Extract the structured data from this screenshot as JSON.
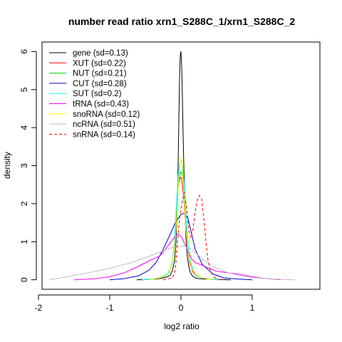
{
  "chart_data": {
    "type": "line",
    "title": "number read ratio xrn1_S288C_1/xrn1_S288C_2",
    "xlabel": "log2 ratio",
    "ylabel": "density",
    "xlim": [
      -1.95,
      1.95
    ],
    "ylim": [
      -0.25,
      6.25
    ],
    "x_ticks": [
      -2,
      -1,
      0,
      1
    ],
    "x_tick_labels": [
      "-2",
      "-1",
      "0",
      "1"
    ],
    "y_ticks": [
      0,
      1,
      2,
      3,
      4,
      5,
      6
    ],
    "y_tick_labels": [
      "0",
      "1",
      "2",
      "3",
      "4",
      "5",
      "6"
    ],
    "legend_position": "top-left",
    "legend_frame": false,
    "series": [
      {
        "name": "gene (sd=0.13)",
        "color": "#000000",
        "dash": "solid",
        "x": [
          -0.62,
          -0.45,
          -0.35,
          -0.27,
          -0.2,
          -0.15,
          -0.12,
          -0.09,
          -0.07,
          -0.05,
          -0.04,
          -0.03,
          -0.02,
          -0.01,
          0.0,
          0.01,
          0.02,
          0.03,
          0.04,
          0.05,
          0.06,
          0.07,
          0.09,
          0.11,
          0.13,
          0.16,
          0.2,
          0.25,
          0.35,
          0.5,
          0.7
        ],
        "y": [
          0.0,
          0.01,
          0.02,
          0.04,
          0.07,
          0.12,
          0.25,
          0.5,
          1.0,
          2.0,
          3.0,
          4.2,
          5.3,
          5.9,
          6.0,
          5.6,
          4.8,
          3.8,
          3.0,
          2.2,
          1.6,
          1.1,
          0.6,
          0.35,
          0.2,
          0.1,
          0.05,
          0.03,
          0.02,
          0.01,
          0.0
        ]
      },
      {
        "name": "XUT (sd=0.22)",
        "color": "#ff0000",
        "dash": "solid",
        "x": [
          -0.55,
          -0.4,
          -0.3,
          -0.22,
          -0.17,
          -0.13,
          -0.1,
          -0.08,
          -0.06,
          -0.04,
          -0.02,
          0.0,
          0.02,
          0.04,
          0.06,
          0.08,
          0.1,
          0.13,
          0.17,
          0.22,
          0.3,
          0.4,
          0.55
        ],
        "y": [
          0.0,
          0.02,
          0.05,
          0.1,
          0.2,
          0.4,
          0.8,
          1.3,
          1.9,
          2.4,
          2.65,
          2.7,
          2.5,
          2.1,
          1.6,
          1.1,
          0.7,
          0.4,
          0.2,
          0.1,
          0.05,
          0.02,
          0.0
        ]
      },
      {
        "name": "NUT (sd=0.21)",
        "color": "#00cc00",
        "dash": "solid",
        "x": [
          -0.55,
          -0.4,
          -0.3,
          -0.22,
          -0.17,
          -0.13,
          -0.1,
          -0.08,
          -0.06,
          -0.04,
          -0.02,
          0.0,
          0.02,
          0.04,
          0.06,
          0.08,
          0.1,
          0.13,
          0.17,
          0.22,
          0.3,
          0.4,
          0.55
        ],
        "y": [
          0.0,
          0.02,
          0.05,
          0.1,
          0.2,
          0.4,
          0.8,
          1.3,
          1.9,
          2.4,
          2.7,
          2.85,
          2.75,
          2.4,
          1.9,
          1.4,
          0.9,
          0.5,
          0.25,
          0.1,
          0.05,
          0.02,
          0.0
        ]
      },
      {
        "name": "CUT (sd=0.28)",
        "color": "#0000cc",
        "dash": "solid",
        "x": [
          -1.0,
          -0.8,
          -0.6,
          -0.45,
          -0.35,
          -0.25,
          -0.15,
          -0.08,
          0.0,
          0.05,
          0.1,
          0.15,
          0.2,
          0.3,
          0.45,
          0.6,
          0.8,
          1.0
        ],
        "y": [
          0.0,
          0.03,
          0.1,
          0.25,
          0.45,
          0.8,
          1.2,
          1.5,
          1.72,
          1.75,
          1.6,
          1.2,
          0.8,
          0.4,
          0.15,
          0.05,
          0.02,
          0.0
        ]
      },
      {
        "name": "SUT (sd=0.2)",
        "color": "#00ffff",
        "dash": "solid",
        "x": [
          -0.55,
          -0.4,
          -0.3,
          -0.22,
          -0.17,
          -0.13,
          -0.1,
          -0.08,
          -0.06,
          -0.04,
          -0.02,
          0.0,
          0.02,
          0.04,
          0.06,
          0.08,
          0.1,
          0.13,
          0.17,
          0.22,
          0.3,
          0.4,
          0.55
        ],
        "y": [
          0.0,
          0.02,
          0.05,
          0.1,
          0.2,
          0.4,
          0.8,
          1.4,
          2.1,
          2.7,
          3.05,
          3.15,
          3.0,
          2.6,
          2.0,
          1.4,
          0.9,
          0.5,
          0.25,
          0.1,
          0.05,
          0.02,
          0.0
        ]
      },
      {
        "name": "tRNA (sd=0.43)",
        "color": "#ff00ff",
        "dash": "solid",
        "x": [
          -1.5,
          -1.2,
          -1.0,
          -0.8,
          -0.6,
          -0.45,
          -0.3,
          -0.2,
          -0.1,
          -0.05,
          0.0,
          0.05,
          0.1,
          0.15,
          0.2,
          0.3,
          0.4,
          0.5,
          0.6,
          0.8,
          1.0,
          1.2,
          1.4
        ],
        "y": [
          0.0,
          0.03,
          0.08,
          0.18,
          0.35,
          0.5,
          0.62,
          0.85,
          1.1,
          1.2,
          1.15,
          0.95,
          0.75,
          0.55,
          0.45,
          0.38,
          0.3,
          0.22,
          0.2,
          0.15,
          0.08,
          0.03,
          0.0
        ]
      },
      {
        "name": "snoRNA (sd=0.12)",
        "color": "#ffff00",
        "dash": "solid",
        "x": [
          -0.45,
          -0.3,
          -0.2,
          -0.15,
          -0.1,
          -0.07,
          -0.05,
          -0.03,
          -0.01,
          0.0,
          0.01,
          0.03,
          0.05,
          0.07,
          0.1,
          0.15,
          0.2,
          0.3,
          0.45
        ],
        "y": [
          0.0,
          0.05,
          0.15,
          0.3,
          0.7,
          1.3,
          2.0,
          2.7,
          3.1,
          3.2,
          3.1,
          2.6,
          1.9,
          1.3,
          0.7,
          0.3,
          0.15,
          0.05,
          0.0
        ]
      },
      {
        "name": "ncRNA (sd=0.51)",
        "color": "#bebebe",
        "dash": "solid",
        "x": [
          -1.85,
          -1.6,
          -1.3,
          -1.0,
          -0.7,
          -0.4,
          -0.2,
          -0.05,
          0.05,
          0.15,
          0.3,
          0.45,
          0.6,
          0.8,
          1.0,
          1.2,
          1.4,
          1.6
        ],
        "y": [
          0.0,
          0.08,
          0.18,
          0.3,
          0.45,
          0.65,
          0.8,
          0.88,
          0.88,
          0.8,
          0.55,
          0.35,
          0.22,
          0.12,
          0.06,
          0.03,
          0.01,
          0.0
        ]
      },
      {
        "name": "snRNA (sd=0.14)",
        "color": "#ff0000",
        "dash": "dashed",
        "x": [
          -0.25,
          -0.12,
          -0.08,
          -0.06,
          -0.04,
          -0.02,
          0.0,
          0.02,
          0.05,
          0.08,
          0.11,
          0.14,
          0.17,
          0.2,
          0.23,
          0.26,
          0.29,
          0.32,
          0.35,
          0.38,
          0.42,
          0.46,
          0.5,
          0.6
        ],
        "y": [
          0.0,
          0.05,
          0.25,
          0.7,
          1.2,
          1.6,
          1.85,
          2.1,
          2.3,
          1.85,
          1.3,
          1.1,
          1.35,
          1.8,
          2.1,
          2.22,
          2.12,
          1.6,
          1.0,
          0.5,
          0.2,
          0.08,
          0.02,
          0.0
        ]
      }
    ]
  }
}
